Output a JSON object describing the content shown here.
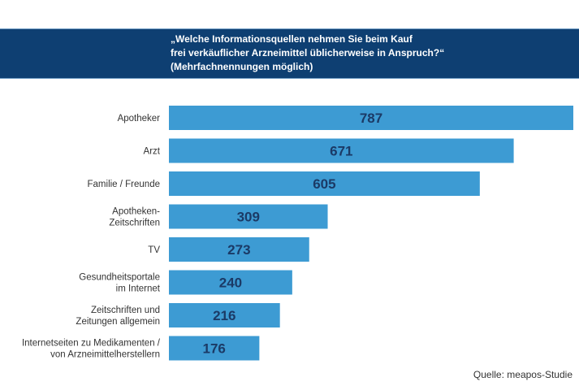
{
  "chart_data": {
    "type": "bar",
    "orientation": "horizontal",
    "title": "„Welche Informationsquellen nehmen Sie beim Kauf\nfrei verkäuflicher Arzneimittel üblicherweise in Anspruch?“\n(Mehrfachnennungen möglich)",
    "categories": [
      [
        "Apotheker"
      ],
      [
        "Arzt"
      ],
      [
        "Familie / Freunde"
      ],
      [
        "Apotheken-",
        "Zeitschriften"
      ],
      [
        "TV"
      ],
      [
        "Gesundheitsportale",
        "im Internet"
      ],
      [
        "Zeitschriften und",
        "Zeitungen allgemein"
      ],
      [
        "Internetseiten zu Medikamenten /",
        "von Arzneimittelherstellern"
      ]
    ],
    "values": [
      787,
      671,
      605,
      309,
      273,
      240,
      216,
      176
    ],
    "xlim": [
      0,
      787
    ],
    "grid": false,
    "bar_color": "#3d9bd3",
    "header_color": "#0e3f72",
    "value_color": "#1b3a66",
    "source": "Quelle: meapos-Studie"
  }
}
